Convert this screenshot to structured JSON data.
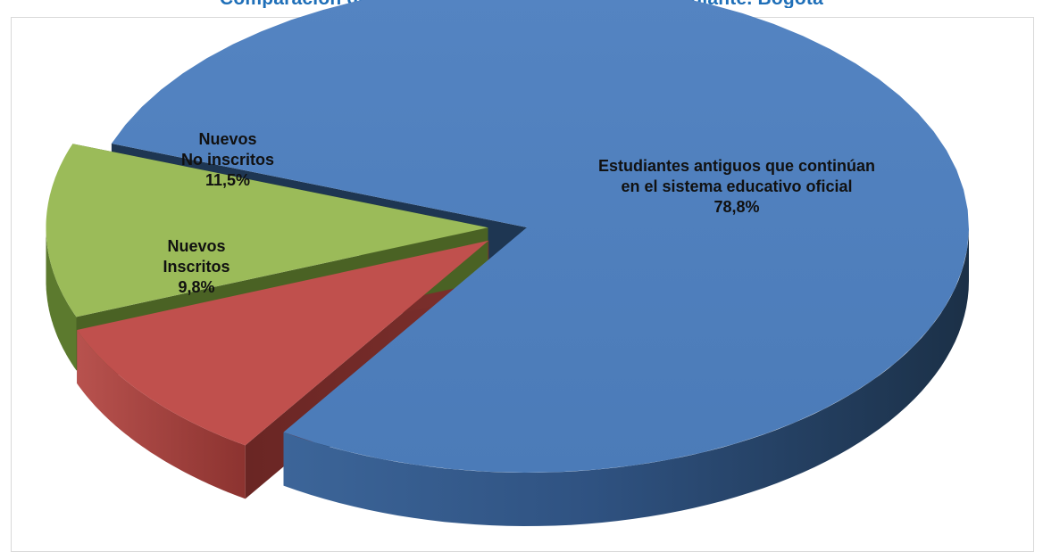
{
  "title": "Comparación de la matrícula oficial por tipo de estudiante. Bogotá",
  "chart_data": {
    "type": "pie",
    "style": "3d-exploded",
    "slices": [
      {
        "label_lines": [
          "Estudiantes antiguos que continúan",
          "en el sistema educativo oficial"
        ],
        "value_label": "78,8%",
        "value": 78.8,
        "color": "#4f81bd"
      },
      {
        "label_lines": [
          "Nuevos",
          "Inscritos"
        ],
        "value_label": "9,8%",
        "value": 9.8,
        "color": "#c0504d"
      },
      {
        "label_lines": [
          "Nuevos",
          "No inscritos"
        ],
        "value_label": "11,5%",
        "value": 11.5,
        "color": "#9bbb59"
      }
    ]
  }
}
